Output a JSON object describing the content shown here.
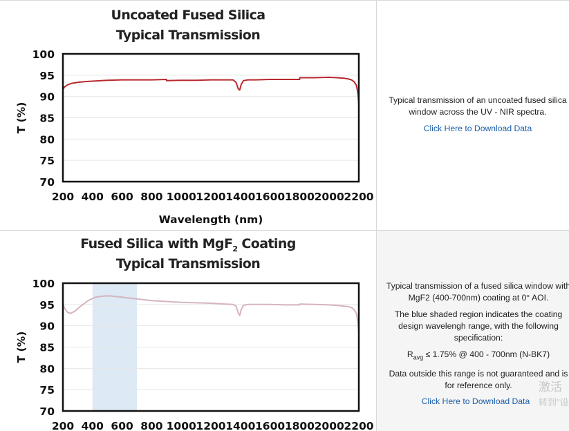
{
  "chart_data": [
    {
      "type": "line",
      "title_line1": "Uncoated Fused Silica",
      "title_line2": "Typical Transmission",
      "xlabel": "Wavelength (nm)",
      "ylabel": "T (%)",
      "xlim": [
        200,
        2200
      ],
      "ylim": [
        70,
        100
      ],
      "xticks": [
        "200",
        "400",
        "600",
        "800",
        "1000",
        "1200",
        "1400",
        "1600",
        "1800",
        "2000",
        "2200"
      ],
      "yticks": [
        "100",
        "95",
        "90",
        "85",
        "80",
        "75",
        "70"
      ],
      "grid": "horizontal",
      "series": [
        {
          "color": "#b8282e",
          "x": [
            200,
            210,
            230,
            260,
            300,
            350,
            400,
            500,
            600,
            700,
            800,
            900,
            901,
            1000,
            1100,
            1200,
            1300,
            1350,
            1370,
            1385,
            1395,
            1405,
            1420,
            1450,
            1500,
            1600,
            1700,
            1800,
            1801,
            1900,
            2000,
            2050,
            2100,
            2130,
            2150,
            2170,
            2185,
            2195,
            2200
          ],
          "y": [
            91.6,
            92.2,
            92.7,
            93.1,
            93.3,
            93.5,
            93.6,
            93.8,
            93.9,
            93.9,
            93.9,
            94.0,
            93.7,
            93.8,
            93.8,
            93.9,
            93.9,
            93.9,
            93.3,
            91.8,
            91.5,
            92.8,
            93.7,
            93.9,
            93.9,
            94.0,
            94.0,
            94.0,
            94.4,
            94.4,
            94.5,
            94.4,
            94.3,
            94.1,
            93.9,
            93.4,
            92.5,
            90.4,
            88.0
          ]
        }
      ]
    },
    {
      "type": "line",
      "title_line1a": "Fused Silica with MgF",
      "title_sub": "2",
      "title_line1b": " Coating",
      "title_line2": "Typical Transmission",
      "ylabel": "T (%)",
      "xlim": [
        200,
        2200
      ],
      "ylim": [
        70,
        100
      ],
      "xticks": [
        "200",
        "400",
        "600",
        "800",
        "1000",
        "1200",
        "1400",
        "1600",
        "1800",
        "2000",
        "2200"
      ],
      "yticks": [
        "100",
        "95",
        "90",
        "85",
        "80",
        "75",
        "70"
      ],
      "grid": "horizontal",
      "shaded_region": {
        "x": [
          400,
          700
        ],
        "color": "#dde9f4"
      },
      "series": [
        {
          "color": "#d5b3bf",
          "x": [
            200,
            210,
            230,
            250,
            280,
            320,
            370,
            420,
            480,
            520,
            600,
            700,
            800,
            900,
            1000,
            1100,
            1200,
            1300,
            1350,
            1370,
            1385,
            1395,
            1405,
            1420,
            1450,
            1500,
            1600,
            1700,
            1800,
            1801,
            1900,
            2000,
            2050,
            2100,
            2130,
            2150,
            2170,
            2185,
            2195,
            2200
          ],
          "y": [
            95.2,
            94.2,
            93.2,
            92.9,
            93.4,
            94.6,
            95.9,
            96.7,
            97.0,
            97.0,
            96.7,
            96.3,
            95.9,
            95.7,
            95.5,
            95.4,
            95.3,
            95.1,
            95.0,
            94.6,
            93.0,
            92.4,
            93.8,
            94.8,
            95.0,
            95.0,
            95.0,
            94.9,
            94.9,
            95.1,
            95.0,
            94.9,
            94.8,
            94.6,
            94.5,
            94.3,
            93.7,
            92.8,
            90.5,
            88.0
          ]
        }
      ]
    }
  ],
  "info": [
    {
      "description": "Typical transmission of an uncoated fused silica window across the UV - NIR spectra.",
      "link_label": "Click Here to Download Data"
    },
    {
      "description1": "Typical transmission of a fused silica window with MgF2 (400-700nm) coating at 0° AOI.",
      "description2": "The blue shaded region indicates the coating design wavelengh range, with the following specification:",
      "spec_prefix": "R",
      "spec_sub": "avg",
      "spec_text": " ≤ 1.75% @ 400 - 700nm (N-BK7)",
      "description3": "Data outside this range is not guaranteed and is for reference only.",
      "link_label": "Click Here to Download Data"
    }
  ],
  "watermark": {
    "line1": "激活",
    "line2": "转到\"设"
  }
}
